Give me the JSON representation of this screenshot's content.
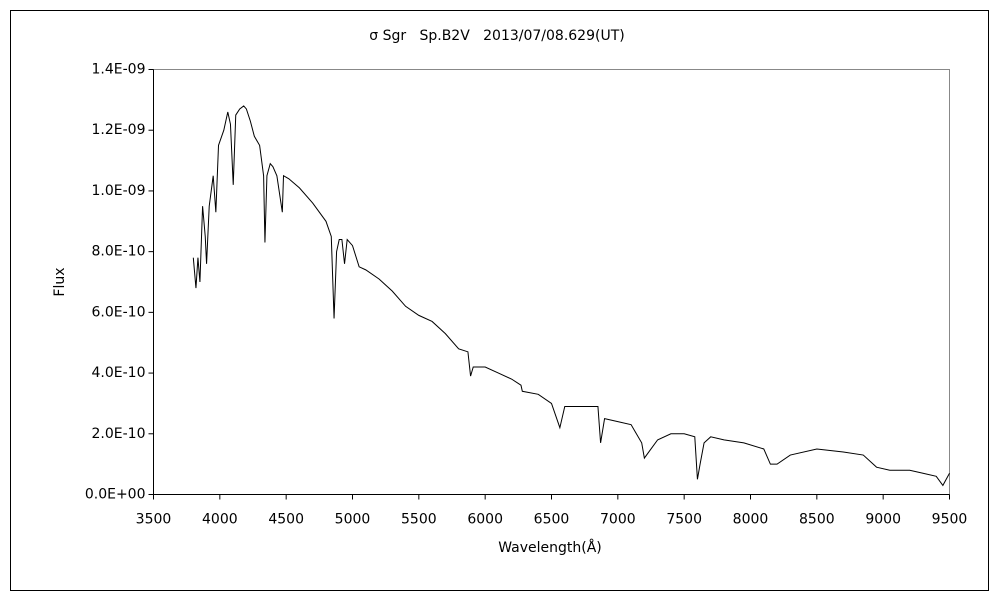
{
  "chart_data": {
    "type": "line",
    "title": "σ Sgr   Sp.B2V   2013/07/08.629(UT)",
    "xlabel": "Wavelength(Å)",
    "ylabel": "Flux",
    "x": [
      3800,
      3820,
      3835,
      3850,
      3870,
      3890,
      3900,
      3920,
      3950,
      3970,
      3990,
      4030,
      4060,
      4080,
      4101,
      4120,
      4150,
      4180,
      4200,
      4230,
      4260,
      4300,
      4330,
      4340,
      4355,
      4380,
      4400,
      4430,
      4471,
      4480,
      4520,
      4600,
      4700,
      4800,
      4840,
      4861,
      4880,
      4900,
      4920,
      4940,
      4960,
      5000,
      5050,
      5100,
      5200,
      5300,
      5400,
      5500,
      5600,
      5700,
      5800,
      5870,
      5890,
      5910,
      6000,
      6100,
      6200,
      6270,
      6280,
      6400,
      6500,
      6563,
      6600,
      6700,
      6850,
      6870,
      6900,
      7000,
      7100,
      7180,
      7200,
      7250,
      7300,
      7400,
      7500,
      7580,
      7600,
      7620,
      7650,
      7700,
      7800,
      7950,
      8100,
      8150,
      8200,
      8300,
      8500,
      8700,
      8850,
      8950,
      9050,
      9200,
      9300,
      9400,
      9450,
      9500
    ],
    "series": [
      {
        "name": "Flux",
        "color": "#000000",
        "values": [
          7.8e-10,
          6.8e-10,
          7.8e-10,
          7e-10,
          9.5e-10,
          8.5e-10,
          7.6e-10,
          9.5e-10,
          1.05e-09,
          9.3e-10,
          1.15e-09,
          1.2e-09,
          1.26e-09,
          1.22e-09,
          1.02e-09,
          1.25e-09,
          1.27e-09,
          1.28e-09,
          1.27e-09,
          1.23e-09,
          1.18e-09,
          1.15e-09,
          1.05e-09,
          8.3e-10,
          1.05e-09,
          1.09e-09,
          1.08e-09,
          1.05e-09,
          9.3e-10,
          1.05e-09,
          1.04e-09,
          1.01e-09,
          9.6e-10,
          9e-10,
          8.5e-10,
          5.8e-10,
          8e-10,
          8.4e-10,
          8.4e-10,
          7.6e-10,
          8.4e-10,
          8.2e-10,
          7.5e-10,
          7.4e-10,
          7.1e-10,
          6.7e-10,
          6.2e-10,
          5.9e-10,
          5.7e-10,
          5.3e-10,
          4.8e-10,
          4.7e-10,
          3.9e-10,
          4.2e-10,
          4.2e-10,
          4e-10,
          3.8e-10,
          3.6e-10,
          3.4e-10,
          3.3e-10,
          3e-10,
          2.2e-10,
          2.9e-10,
          2.9e-10,
          2.9e-10,
          1.7e-10,
          2.5e-10,
          2.4e-10,
          2.3e-10,
          1.7e-10,
          1.2e-10,
          1.5e-10,
          1.8e-10,
          2e-10,
          2e-10,
          1.9e-10,
          5e-11,
          1e-10,
          1.7e-10,
          1.9e-10,
          1.8e-10,
          1.7e-10,
          1.5e-10,
          1e-10,
          1e-10,
          1.3e-10,
          1.5e-10,
          1.4e-10,
          1.3e-10,
          9e-11,
          8e-11,
          8e-11,
          7e-11,
          6e-11,
          3e-11,
          7e-11
        ]
      }
    ],
    "xlim": [
      3500,
      9500
    ],
    "xticks": [
      3500,
      4000,
      4500,
      5000,
      5500,
      6000,
      6500,
      7000,
      7500,
      8000,
      8500,
      9000,
      9500
    ],
    "ylim": [
      0,
      1.4e-09
    ],
    "yticks": [
      {
        "value": 0,
        "label": "0.0E+00"
      },
      {
        "value": 2e-10,
        "label": "2.0E-10"
      },
      {
        "value": 4e-10,
        "label": "4.0E-10"
      },
      {
        "value": 6e-10,
        "label": "6.0E-10"
      },
      {
        "value": 8e-10,
        "label": "8.0E-10"
      },
      {
        "value": 1e-09,
        "label": "1.0E-09"
      },
      {
        "value": 1.2e-09,
        "label": "1.2E-09"
      },
      {
        "value": 1.4e-09,
        "label": "1.4E-09"
      }
    ],
    "grid": false
  }
}
